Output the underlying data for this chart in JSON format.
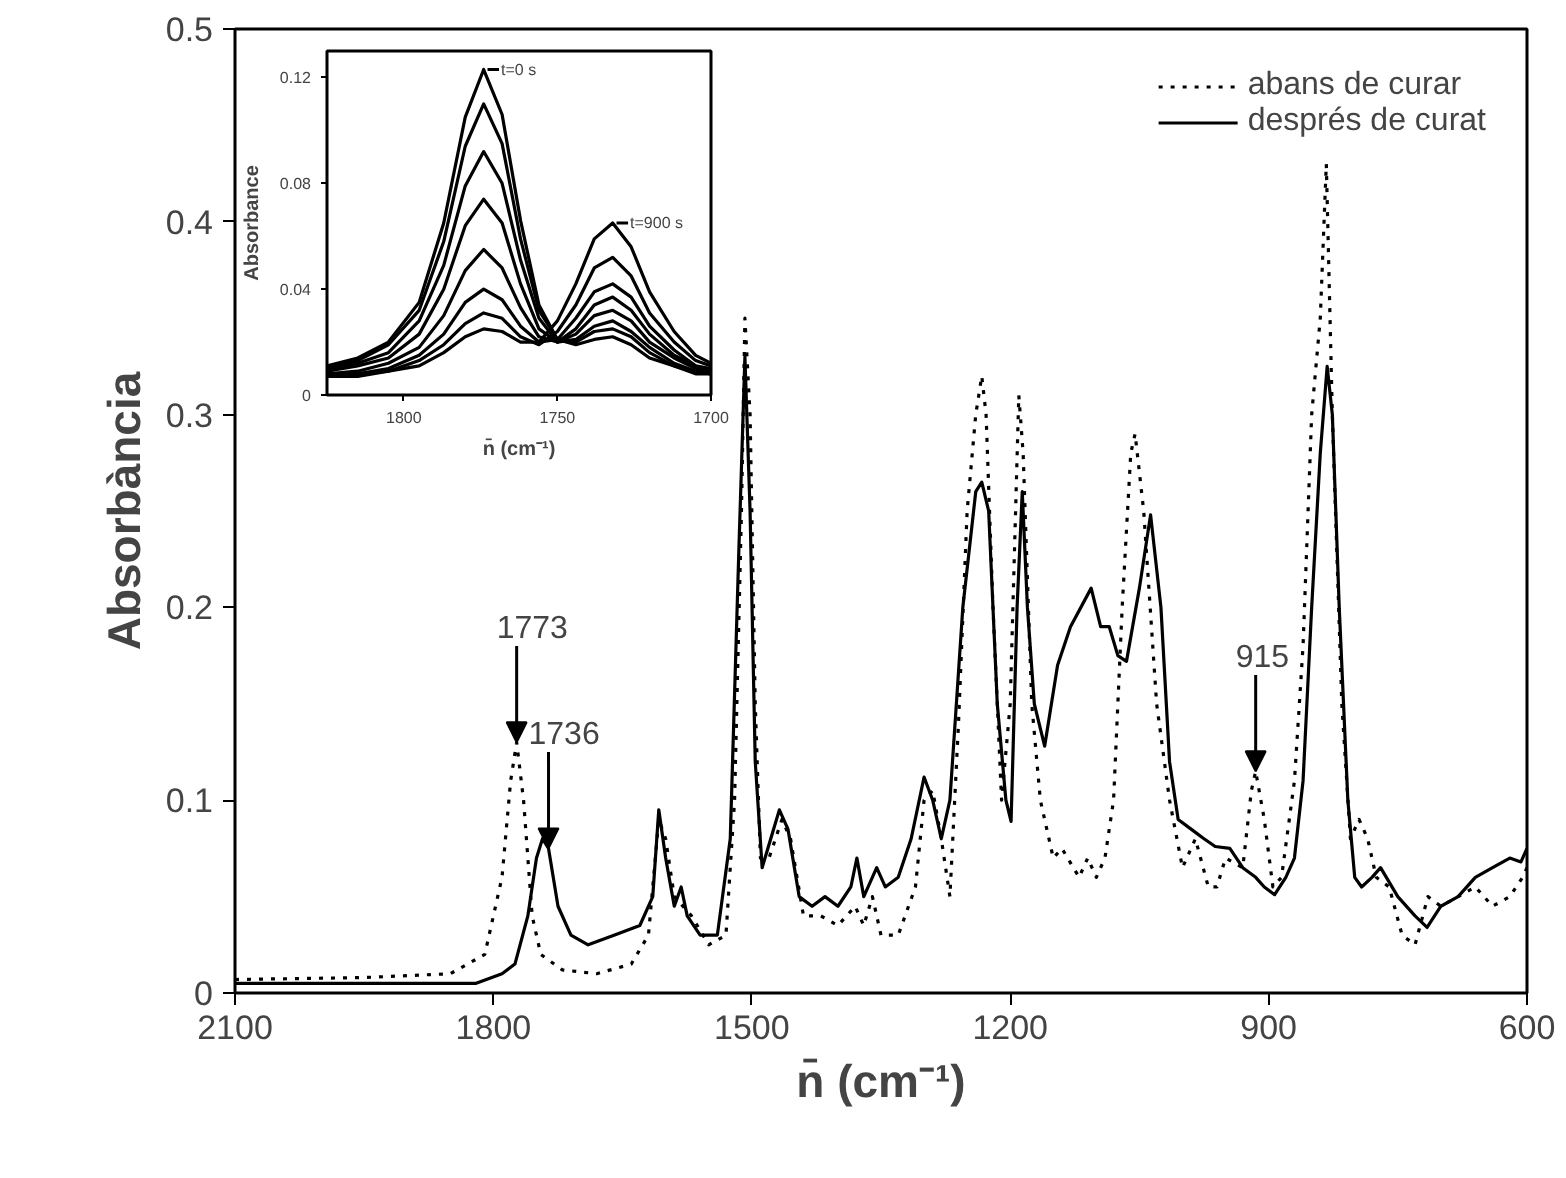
{
  "chart_data": [
    {
      "type": "line",
      "xlabel": "n̄ (cm⁻¹)",
      "ylabel": "Absorbància",
      "xlim": [
        2100,
        600
      ],
      "xticks": [
        2100,
        1800,
        1500,
        1200,
        900,
        600
      ],
      "ylim": [
        0,
        0.5
      ],
      "yticks": [
        0,
        0.1,
        0.2,
        0.3,
        0.4,
        0.5
      ],
      "grid": false,
      "legend": "top right",
      "annotations": [
        {
          "text": "1773",
          "x": 1773,
          "y": 0.13
        },
        {
          "text": "1736",
          "x": 1736,
          "y": 0.075
        },
        {
          "text": "915",
          "x": 915,
          "y": 0.115
        }
      ],
      "series": [
        {
          "name": "abans de curar",
          "color": "#000000",
          "line_style": "dotted",
          "x": [
            2100,
            1950,
            1850,
            1810,
            1790,
            1780,
            1773,
            1765,
            1755,
            1745,
            1720,
            1680,
            1640,
            1620,
            1608,
            1600,
            1590,
            1580,
            1570,
            1550,
            1530,
            1520,
            1512,
            1508,
            1502,
            1496,
            1490,
            1480,
            1465,
            1455,
            1440,
            1420,
            1400,
            1380,
            1370,
            1360,
            1350,
            1330,
            1310,
            1300,
            1290,
            1280,
            1270,
            1260,
            1250,
            1240,
            1233,
            1228,
            1220,
            1210,
            1200,
            1190,
            1185,
            1175,
            1165,
            1150,
            1140,
            1120,
            1110,
            1100,
            1090,
            1080,
            1070,
            1060,
            1055,
            1045,
            1030,
            1015,
            1000,
            985,
            970,
            960,
            950,
            930,
            920,
            915,
            905,
            895,
            885,
            870,
            860,
            850,
            840,
            833,
            826,
            815,
            805,
            795,
            785,
            775,
            760,
            745,
            730,
            715,
            700,
            680,
            660,
            640,
            620,
            605,
            600
          ],
          "values": [
            0.007,
            0.008,
            0.01,
            0.02,
            0.06,
            0.11,
            0.13,
            0.1,
            0.04,
            0.02,
            0.012,
            0.01,
            0.015,
            0.03,
            0.09,
            0.08,
            0.05,
            0.045,
            0.04,
            0.025,
            0.03,
            0.1,
            0.25,
            0.35,
            0.3,
            0.15,
            0.07,
            0.07,
            0.09,
            0.08,
            0.04,
            0.04,
            0.035,
            0.045,
            0.035,
            0.05,
            0.03,
            0.03,
            0.055,
            0.1,
            0.105,
            0.08,
            0.05,
            0.14,
            0.25,
            0.3,
            0.32,
            0.3,
            0.2,
            0.1,
            0.15,
            0.31,
            0.28,
            0.15,
            0.1,
            0.07,
            0.075,
            0.06,
            0.07,
            0.06,
            0.07,
            0.1,
            0.2,
            0.28,
            0.29,
            0.25,
            0.15,
            0.1,
            0.065,
            0.08,
            0.055,
            0.055,
            0.07,
            0.065,
            0.105,
            0.115,
            0.09,
            0.055,
            0.06,
            0.11,
            0.18,
            0.3,
            0.35,
            0.43,
            0.3,
            0.15,
            0.08,
            0.09,
            0.08,
            0.06,
            0.055,
            0.03,
            0.025,
            0.05,
            0.045,
            0.05,
            0.055,
            0.045,
            0.05,
            0.06,
            0.065
          ]
        },
        {
          "name": "després de curat",
          "color": "#000000",
          "line_style": "solid",
          "x": [
            2100,
            1900,
            1820,
            1790,
            1775,
            1760,
            1750,
            1743,
            1736,
            1725,
            1710,
            1690,
            1660,
            1630,
            1615,
            1608,
            1600,
            1590,
            1582,
            1575,
            1560,
            1540,
            1525,
            1515,
            1508,
            1502,
            1496,
            1488,
            1478,
            1468,
            1458,
            1445,
            1430,
            1415,
            1400,
            1385,
            1378,
            1370,
            1355,
            1345,
            1330,
            1315,
            1300,
            1290,
            1280,
            1270,
            1255,
            1240,
            1233,
            1225,
            1215,
            1205,
            1199,
            1192,
            1186,
            1180,
            1172,
            1160,
            1145,
            1130,
            1106,
            1095,
            1085,
            1075,
            1065,
            1050,
            1037,
            1025,
            1015,
            1005,
            990,
            975,
            962,
            945,
            930,
            915,
            905,
            893,
            880,
            870,
            860,
            850,
            840,
            832,
            826,
            818,
            808,
            800,
            792,
            780,
            770,
            750,
            730,
            716,
            700,
            680,
            660,
            640,
            620,
            607,
            600
          ],
          "values": [
            0.005,
            0.005,
            0.005,
            0.01,
            0.015,
            0.04,
            0.07,
            0.08,
            0.075,
            0.045,
            0.03,
            0.025,
            0.03,
            0.035,
            0.05,
            0.095,
            0.07,
            0.045,
            0.055,
            0.04,
            0.03,
            0.03,
            0.08,
            0.23,
            0.33,
            0.25,
            0.12,
            0.065,
            0.08,
            0.095,
            0.085,
            0.05,
            0.045,
            0.05,
            0.045,
            0.055,
            0.07,
            0.05,
            0.065,
            0.055,
            0.06,
            0.08,
            0.112,
            0.1,
            0.08,
            0.1,
            0.2,
            0.26,
            0.265,
            0.25,
            0.15,
            0.1,
            0.089,
            0.2,
            0.26,
            0.2,
            0.15,
            0.128,
            0.17,
            0.19,
            0.21,
            0.19,
            0.19,
            0.175,
            0.172,
            0.21,
            0.248,
            0.2,
            0.12,
            0.09,
            0.085,
            0.08,
            0.076,
            0.075,
            0.065,
            0.06,
            0.055,
            0.051,
            0.06,
            0.07,
            0.11,
            0.2,
            0.28,
            0.325,
            0.3,
            0.2,
            0.1,
            0.06,
            0.055,
            0.06,
            0.065,
            0.05,
            0.04,
            0.034,
            0.045,
            0.05,
            0.06,
            0.065,
            0.07,
            0.068,
            0.075
          ]
        }
      ]
    },
    {
      "type": "line",
      "xlabel": "n̄ (cm⁻¹)",
      "ylabel": "Absorbance",
      "xlim": [
        1825,
        1700
      ],
      "xticks": [
        1800,
        1750,
        1700
      ],
      "ylim": [
        0,
        0.13
      ],
      "yticks": [
        0,
        0.04,
        0.08,
        0.12
      ],
      "grid": false,
      "annotations": [
        {
          "text": "t=0 s",
          "x": 1774,
          "y": 0.123
        },
        {
          "text": "t=900 s",
          "x": 1732,
          "y": 0.065
        }
      ],
      "x": [
        1825,
        1815,
        1805,
        1795,
        1787,
        1780,
        1774,
        1768,
        1762,
        1756,
        1750,
        1744,
        1738,
        1732,
        1726,
        1720,
        1712,
        1705,
        1700
      ],
      "series": [
        {
          "color": "#000000",
          "values": [
            0.011,
            0.014,
            0.02,
            0.035,
            0.065,
            0.105,
            0.123,
            0.106,
            0.066,
            0.034,
            0.021,
            0.019,
            0.021,
            0.022,
            0.019,
            0.014,
            0.011,
            0.008,
            0.008
          ]
        },
        {
          "color": "#000000",
          "values": [
            0.01,
            0.013,
            0.019,
            0.032,
            0.058,
            0.094,
            0.11,
            0.095,
            0.059,
            0.032,
            0.021,
            0.02,
            0.024,
            0.025,
            0.022,
            0.016,
            0.011,
            0.009,
            0.008
          ]
        },
        {
          "color": "#000000",
          "values": [
            0.009,
            0.012,
            0.016,
            0.028,
            0.049,
            0.079,
            0.092,
            0.08,
            0.051,
            0.029,
            0.02,
            0.021,
            0.026,
            0.028,
            0.024,
            0.018,
            0.012,
            0.009,
            0.008
          ]
        },
        {
          "color": "#000000",
          "values": [
            0.009,
            0.011,
            0.014,
            0.023,
            0.04,
            0.064,
            0.074,
            0.065,
            0.042,
            0.025,
            0.02,
            0.023,
            0.03,
            0.032,
            0.028,
            0.02,
            0.014,
            0.01,
            0.009
          ]
        },
        {
          "color": "#000000",
          "values": [
            0.008,
            0.009,
            0.012,
            0.018,
            0.03,
            0.047,
            0.055,
            0.048,
            0.033,
            0.022,
            0.02,
            0.025,
            0.034,
            0.037,
            0.032,
            0.023,
            0.015,
            0.011,
            0.009
          ]
        },
        {
          "color": "#000000",
          "values": [
            0.007,
            0.008,
            0.01,
            0.015,
            0.023,
            0.035,
            0.04,
            0.036,
            0.026,
            0.02,
            0.021,
            0.029,
            0.039,
            0.042,
            0.037,
            0.026,
            0.017,
            0.011,
            0.01
          ]
        },
        {
          "color": "#000000",
          "values": [
            0.007,
            0.008,
            0.009,
            0.013,
            0.019,
            0.027,
            0.031,
            0.029,
            0.022,
            0.019,
            0.024,
            0.034,
            0.048,
            0.052,
            0.045,
            0.031,
            0.02,
            0.013,
            0.011
          ]
        },
        {
          "color": "#000000",
          "values": [
            0.007,
            0.007,
            0.009,
            0.011,
            0.016,
            0.022,
            0.025,
            0.024,
            0.02,
            0.02,
            0.028,
            0.042,
            0.059,
            0.065,
            0.056,
            0.039,
            0.024,
            0.015,
            0.012
          ]
        }
      ]
    }
  ]
}
